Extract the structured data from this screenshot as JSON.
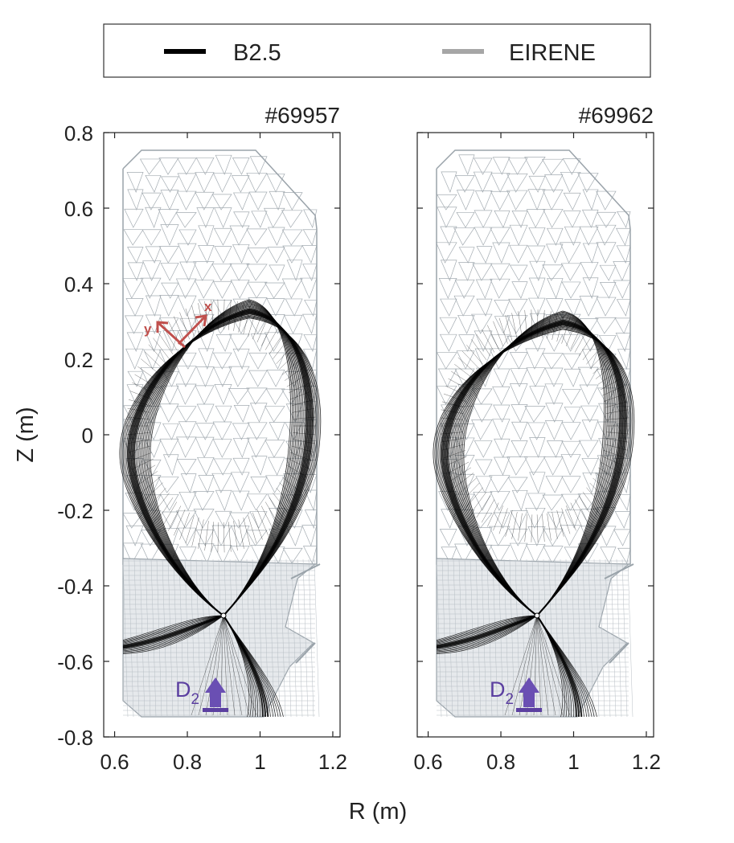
{
  "legend": {
    "entries": [
      {
        "label": "B2.5",
        "color": "#000000"
      },
      {
        "label": "EIRENE",
        "color": "#a6a6a6"
      }
    ]
  },
  "axes": {
    "ylabel": "Z (m)",
    "xlabel": "R (m)",
    "xlim": [
      0.57,
      1.22
    ],
    "ylim": [
      -0.8,
      0.8
    ],
    "xticks": [
      "0.6",
      "0.8",
      "1",
      "1.2"
    ],
    "yticks": [
      "0.8",
      "0.6",
      "0.4",
      "0.2",
      "0",
      "-0.2",
      "-0.4",
      "-0.6",
      "-0.8"
    ]
  },
  "panels": [
    {
      "shot": "#69957",
      "xpoint_z": -0.34,
      "core_top_z": 0.31,
      "show_coords": true
    },
    {
      "shot": "#69962",
      "xpoint_z": -0.34,
      "core_top_z": 0.28,
      "show_coords": false
    }
  ],
  "coord_labels": {
    "x": "x",
    "y": "y"
  },
  "puff": {
    "species": "D",
    "subscript": "2",
    "color": "#5b3fa0"
  },
  "colors": {
    "b25": "#000000",
    "eirene": "#9aa3aa",
    "coords": "#c0504d"
  }
}
